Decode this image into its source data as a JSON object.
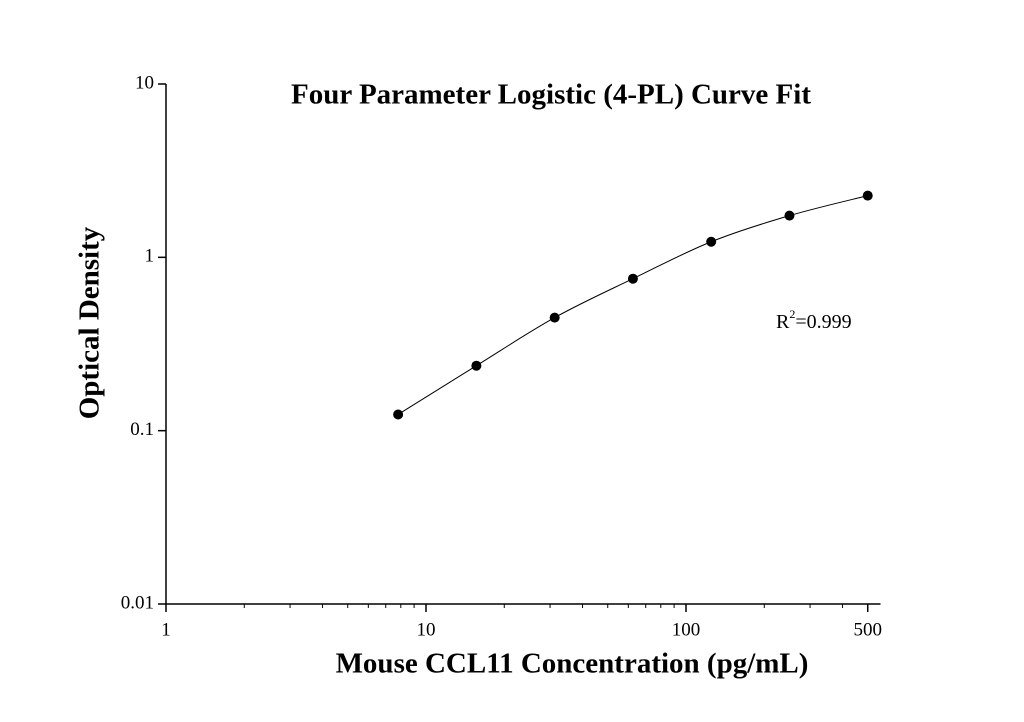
{
  "chart_data": {
    "type": "scatter",
    "title": "Four Parameter Logistic (4-PL) Curve Fit",
    "x_label": "Mouse CCL11 Concentration (pg/mL)",
    "y_label": "Optical Density",
    "annotation": {
      "base": "R",
      "sup": "2",
      "rest": "=0.999"
    },
    "x": [
      7.8125,
      15.625,
      31.25,
      62.5,
      125,
      250,
      500
    ],
    "series": [
      {
        "color": "#000000",
        "values": [
          0.124,
          0.237,
          0.449,
          0.753,
          1.23,
          1.74,
          2.27
        ]
      }
    ],
    "xscale": "log",
    "yscale": "log",
    "xlim": [
      1,
      560
    ],
    "ylim": [
      0.01,
      10
    ],
    "xticks": [
      1,
      10,
      100,
      500
    ],
    "yticks": [
      0.01,
      0.1,
      1,
      10
    ]
  }
}
